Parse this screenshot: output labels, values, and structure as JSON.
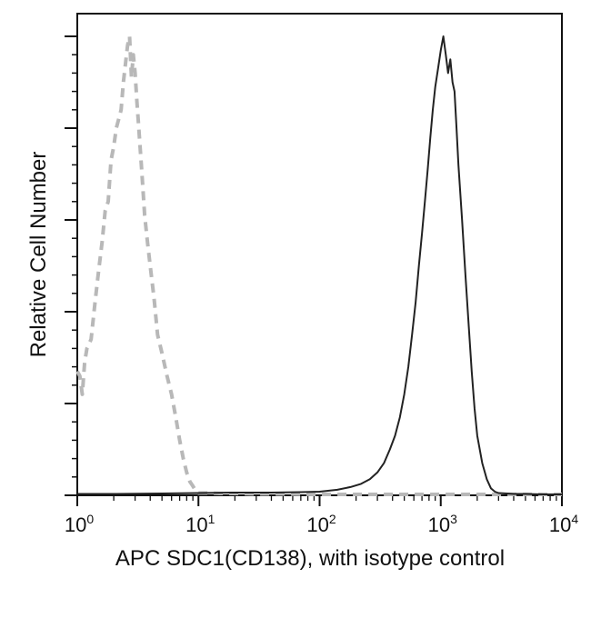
{
  "chart_data": {
    "type": "line",
    "xlabel": "APC SDC1(CD138), with isotype control",
    "ylabel": "Relative Cell Number",
    "x_scale": "log",
    "xlim": [
      1,
      10000
    ],
    "ylim": [
      0,
      1
    ],
    "x_ticks": [
      {
        "base": "10",
        "exp": "0",
        "value": 1
      },
      {
        "base": "10",
        "exp": "1",
        "value": 10
      },
      {
        "base": "10",
        "exp": "2",
        "value": 100
      },
      {
        "base": "10",
        "exp": "3",
        "value": 1000
      },
      {
        "base": "10",
        "exp": "4",
        "value": 10000
      }
    ],
    "grid": false,
    "colors": {
      "sample": "#222222",
      "isotype": "#b8b8b8",
      "frame": "#111111"
    },
    "series": [
      {
        "style": "dashed",
        "color": "#b8b8b8",
        "x": [
          1.0,
          1.05,
          1.1,
          1.15,
          1.2,
          1.3,
          1.4,
          1.5,
          1.6,
          1.7,
          1.8,
          1.9,
          2.0,
          2.1,
          2.2,
          2.3,
          2.4,
          2.5,
          2.6,
          2.7,
          2.8,
          2.9,
          3.0,
          3.1,
          3.2,
          3.4,
          3.6,
          3.8,
          4.0,
          4.3,
          4.6,
          5.0,
          5.5,
          6.0,
          6.5,
          7.0,
          7.5,
          8.0,
          8.5,
          9.0,
          9.5,
          10,
          12,
          15,
          20,
          30,
          50,
          100,
          200,
          500,
          1000,
          2000,
          5000,
          10000
        ],
        "y": [
          0.27,
          0.26,
          0.22,
          0.29,
          0.32,
          0.34,
          0.42,
          0.49,
          0.55,
          0.62,
          0.64,
          0.73,
          0.76,
          0.8,
          0.82,
          0.84,
          0.9,
          0.94,
          0.98,
          1.0,
          0.91,
          0.96,
          0.92,
          0.86,
          0.81,
          0.71,
          0.61,
          0.55,
          0.5,
          0.43,
          0.35,
          0.31,
          0.26,
          0.22,
          0.17,
          0.12,
          0.08,
          0.05,
          0.03,
          0.02,
          0.01,
          0.005,
          0.005,
          0.004,
          0.004,
          0.003,
          0.003,
          0.002,
          0.002,
          0.002,
          0.002,
          0.002,
          0.002,
          0.002
        ]
      },
      {
        "style": "solid",
        "color": "#222222",
        "x": [
          1.0,
          2,
          5,
          10,
          20,
          40,
          70,
          100,
          140,
          180,
          220,
          260,
          300,
          340,
          380,
          420,
          460,
          500,
          540,
          580,
          620,
          660,
          700,
          740,
          780,
          820,
          860,
          900,
          950,
          1000,
          1050,
          1100,
          1150,
          1200,
          1250,
          1300,
          1350,
          1400,
          1500,
          1600,
          1700,
          1800,
          1900,
          2000,
          2200,
          2400,
          2600,
          2800,
          3000,
          3500,
          4000,
          5000,
          7000,
          10000
        ],
        "y": [
          0.003,
          0.003,
          0.004,
          0.005,
          0.006,
          0.006,
          0.007,
          0.008,
          0.012,
          0.018,
          0.025,
          0.035,
          0.05,
          0.07,
          0.1,
          0.13,
          0.17,
          0.22,
          0.28,
          0.35,
          0.42,
          0.5,
          0.57,
          0.64,
          0.71,
          0.78,
          0.84,
          0.89,
          0.93,
          0.97,
          1.0,
          0.96,
          0.92,
          0.95,
          0.9,
          0.88,
          0.8,
          0.72,
          0.6,
          0.48,
          0.37,
          0.27,
          0.19,
          0.13,
          0.07,
          0.035,
          0.015,
          0.008,
          0.005,
          0.004,
          0.003,
          0.003,
          0.002,
          0.002
        ]
      }
    ]
  }
}
